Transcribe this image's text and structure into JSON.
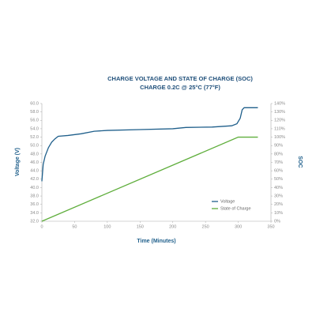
{
  "chart_data": {
    "type": "line",
    "title": "CHARGE VOLTAGE AND STATE OF CHARGE (SOC)",
    "subtitle": "CHARGE 0.2C @ 25°C (77°F)",
    "xlabel": "Time (Minutes)",
    "ylabel": "Voltage (V)",
    "y2label": "SOC",
    "xlim": [
      0,
      350
    ],
    "xticks": [
      0,
      50,
      100,
      150,
      200,
      250,
      300,
      350
    ],
    "ylim": [
      32,
      60
    ],
    "yticks": [
      {
        "value": 32,
        "label": "32.0"
      },
      {
        "value": 34,
        "label": "34.0"
      },
      {
        "value": 36,
        "label": "36.0"
      },
      {
        "value": 38,
        "label": "38.0"
      },
      {
        "value": 40,
        "label": "40.0"
      },
      {
        "value": 42,
        "label": "42.0"
      },
      {
        "value": 44,
        "label": "44.0"
      },
      {
        "value": 46,
        "label": "46.0"
      },
      {
        "value": 48,
        "label": "48.0"
      },
      {
        "value": 50,
        "label": "50.0"
      },
      {
        "value": 52,
        "label": "52.0"
      },
      {
        "value": 54,
        "label": "54.0"
      },
      {
        "value": 56,
        "label": "56.0"
      },
      {
        "value": 58,
        "label": "58.0"
      },
      {
        "value": 60,
        "label": "60.0"
      }
    ],
    "y2lim": [
      0,
      140
    ],
    "y2ticks": [
      {
        "value": 0,
        "label": "0%"
      },
      {
        "value": 10,
        "label": "10%"
      },
      {
        "value": 20,
        "label": "20%"
      },
      {
        "value": 30,
        "label": "30%"
      },
      {
        "value": 40,
        "label": "40%"
      },
      {
        "value": 50,
        "label": "50%"
      },
      {
        "value": 60,
        "label": "60%"
      },
      {
        "value": 70,
        "label": "70%"
      },
      {
        "value": 80,
        "label": "80%"
      },
      {
        "value": 90,
        "label": "90%"
      },
      {
        "value": 100,
        "label": "100%"
      },
      {
        "value": 110,
        "label": "110%"
      },
      {
        "value": 120,
        "label": "120%"
      },
      {
        "value": 130,
        "label": "130%"
      },
      {
        "value": 140,
        "label": "140%"
      }
    ],
    "legend": "lower right",
    "series": [
      {
        "name": "Voltage",
        "color": "#1f5f8b",
        "x": [
          0,
          2,
          5,
          10,
          15,
          20,
          25,
          40,
          60,
          80,
          100,
          150,
          200,
          220,
          260,
          290,
          298,
          303,
          306,
          309,
          320,
          330
        ],
        "values": [
          41.5,
          45.5,
          47.5,
          49.5,
          50.8,
          51.6,
          52.2,
          52.4,
          52.8,
          53.4,
          53.6,
          53.8,
          54.0,
          54.3,
          54.4,
          54.7,
          55.2,
          56.5,
          58.5,
          59.0,
          59.0,
          59.0
        ]
      },
      {
        "name": "State of Charge",
        "color": "#5fae3c",
        "axis": "y2",
        "x": [
          0,
          300,
          330
        ],
        "values": [
          0,
          100,
          100
        ]
      }
    ]
  }
}
